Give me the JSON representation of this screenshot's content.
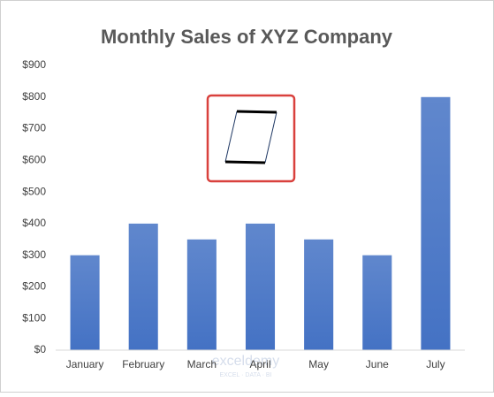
{
  "chart_data": {
    "type": "bar",
    "title": "Monthly Sales of XYZ Company",
    "categories": [
      "January",
      "February",
      "March",
      "April",
      "May",
      "June",
      "July"
    ],
    "values": [
      300,
      400,
      350,
      400,
      350,
      300,
      800
    ],
    "color": "#4472c4",
    "ylim": [
      0,
      900
    ],
    "yticks": [
      {
        "value": 0,
        "label": "$0"
      },
      {
        "value": 100,
        "label": "$100"
      },
      {
        "value": 200,
        "label": "$200"
      },
      {
        "value": 300,
        "label": "$300"
      },
      {
        "value": 400,
        "label": "$400"
      },
      {
        "value": 500,
        "label": "$500"
      },
      {
        "value": 600,
        "label": "$600"
      },
      {
        "value": 700,
        "label": "$700"
      },
      {
        "value": 800,
        "label": "$800"
      },
      {
        "value": 900,
        "label": "$900"
      }
    ],
    "grid": false
  },
  "watermark": {
    "name": "exceldemy",
    "tagline": "EXCEL · DATA · BI"
  }
}
